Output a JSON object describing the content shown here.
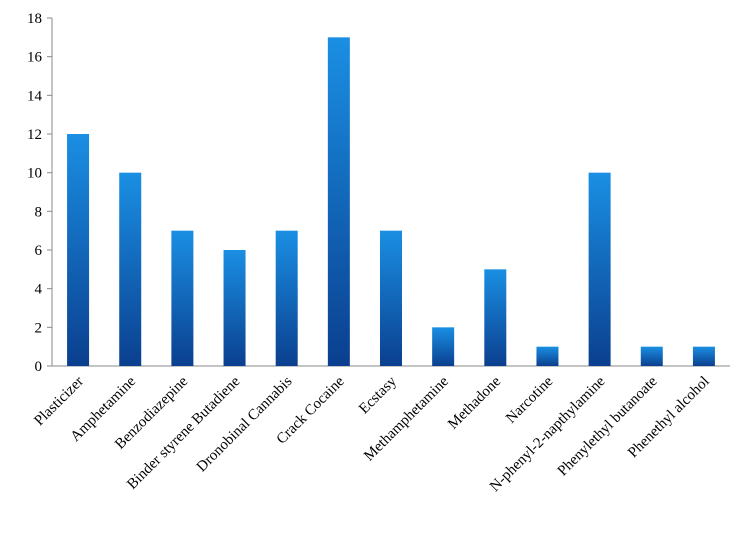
{
  "chart_data": {
    "type": "bar",
    "categories": [
      "Plasticizer",
      "Amphetamine",
      "Benzodiazepine",
      "Binder styrene Butadiene",
      "Dronobinal Cannabis",
      "Crack Cocaine",
      "Ecstasy",
      "Methamphetamine",
      "Methadone",
      "Narcotine",
      "N-phenyl-2-napthylamine",
      "Phenylethyl butanoate",
      "Phenethyl alcohol"
    ],
    "values": [
      12,
      10,
      7,
      6,
      7,
      17,
      7,
      2,
      5,
      1,
      10,
      1,
      1
    ],
    "color": "#1a8fe3",
    "ylim": [
      0,
      18
    ],
    "yticks": [
      0,
      2,
      4,
      6,
      8,
      10,
      12,
      14,
      16,
      18
    ],
    "grid": false
  }
}
